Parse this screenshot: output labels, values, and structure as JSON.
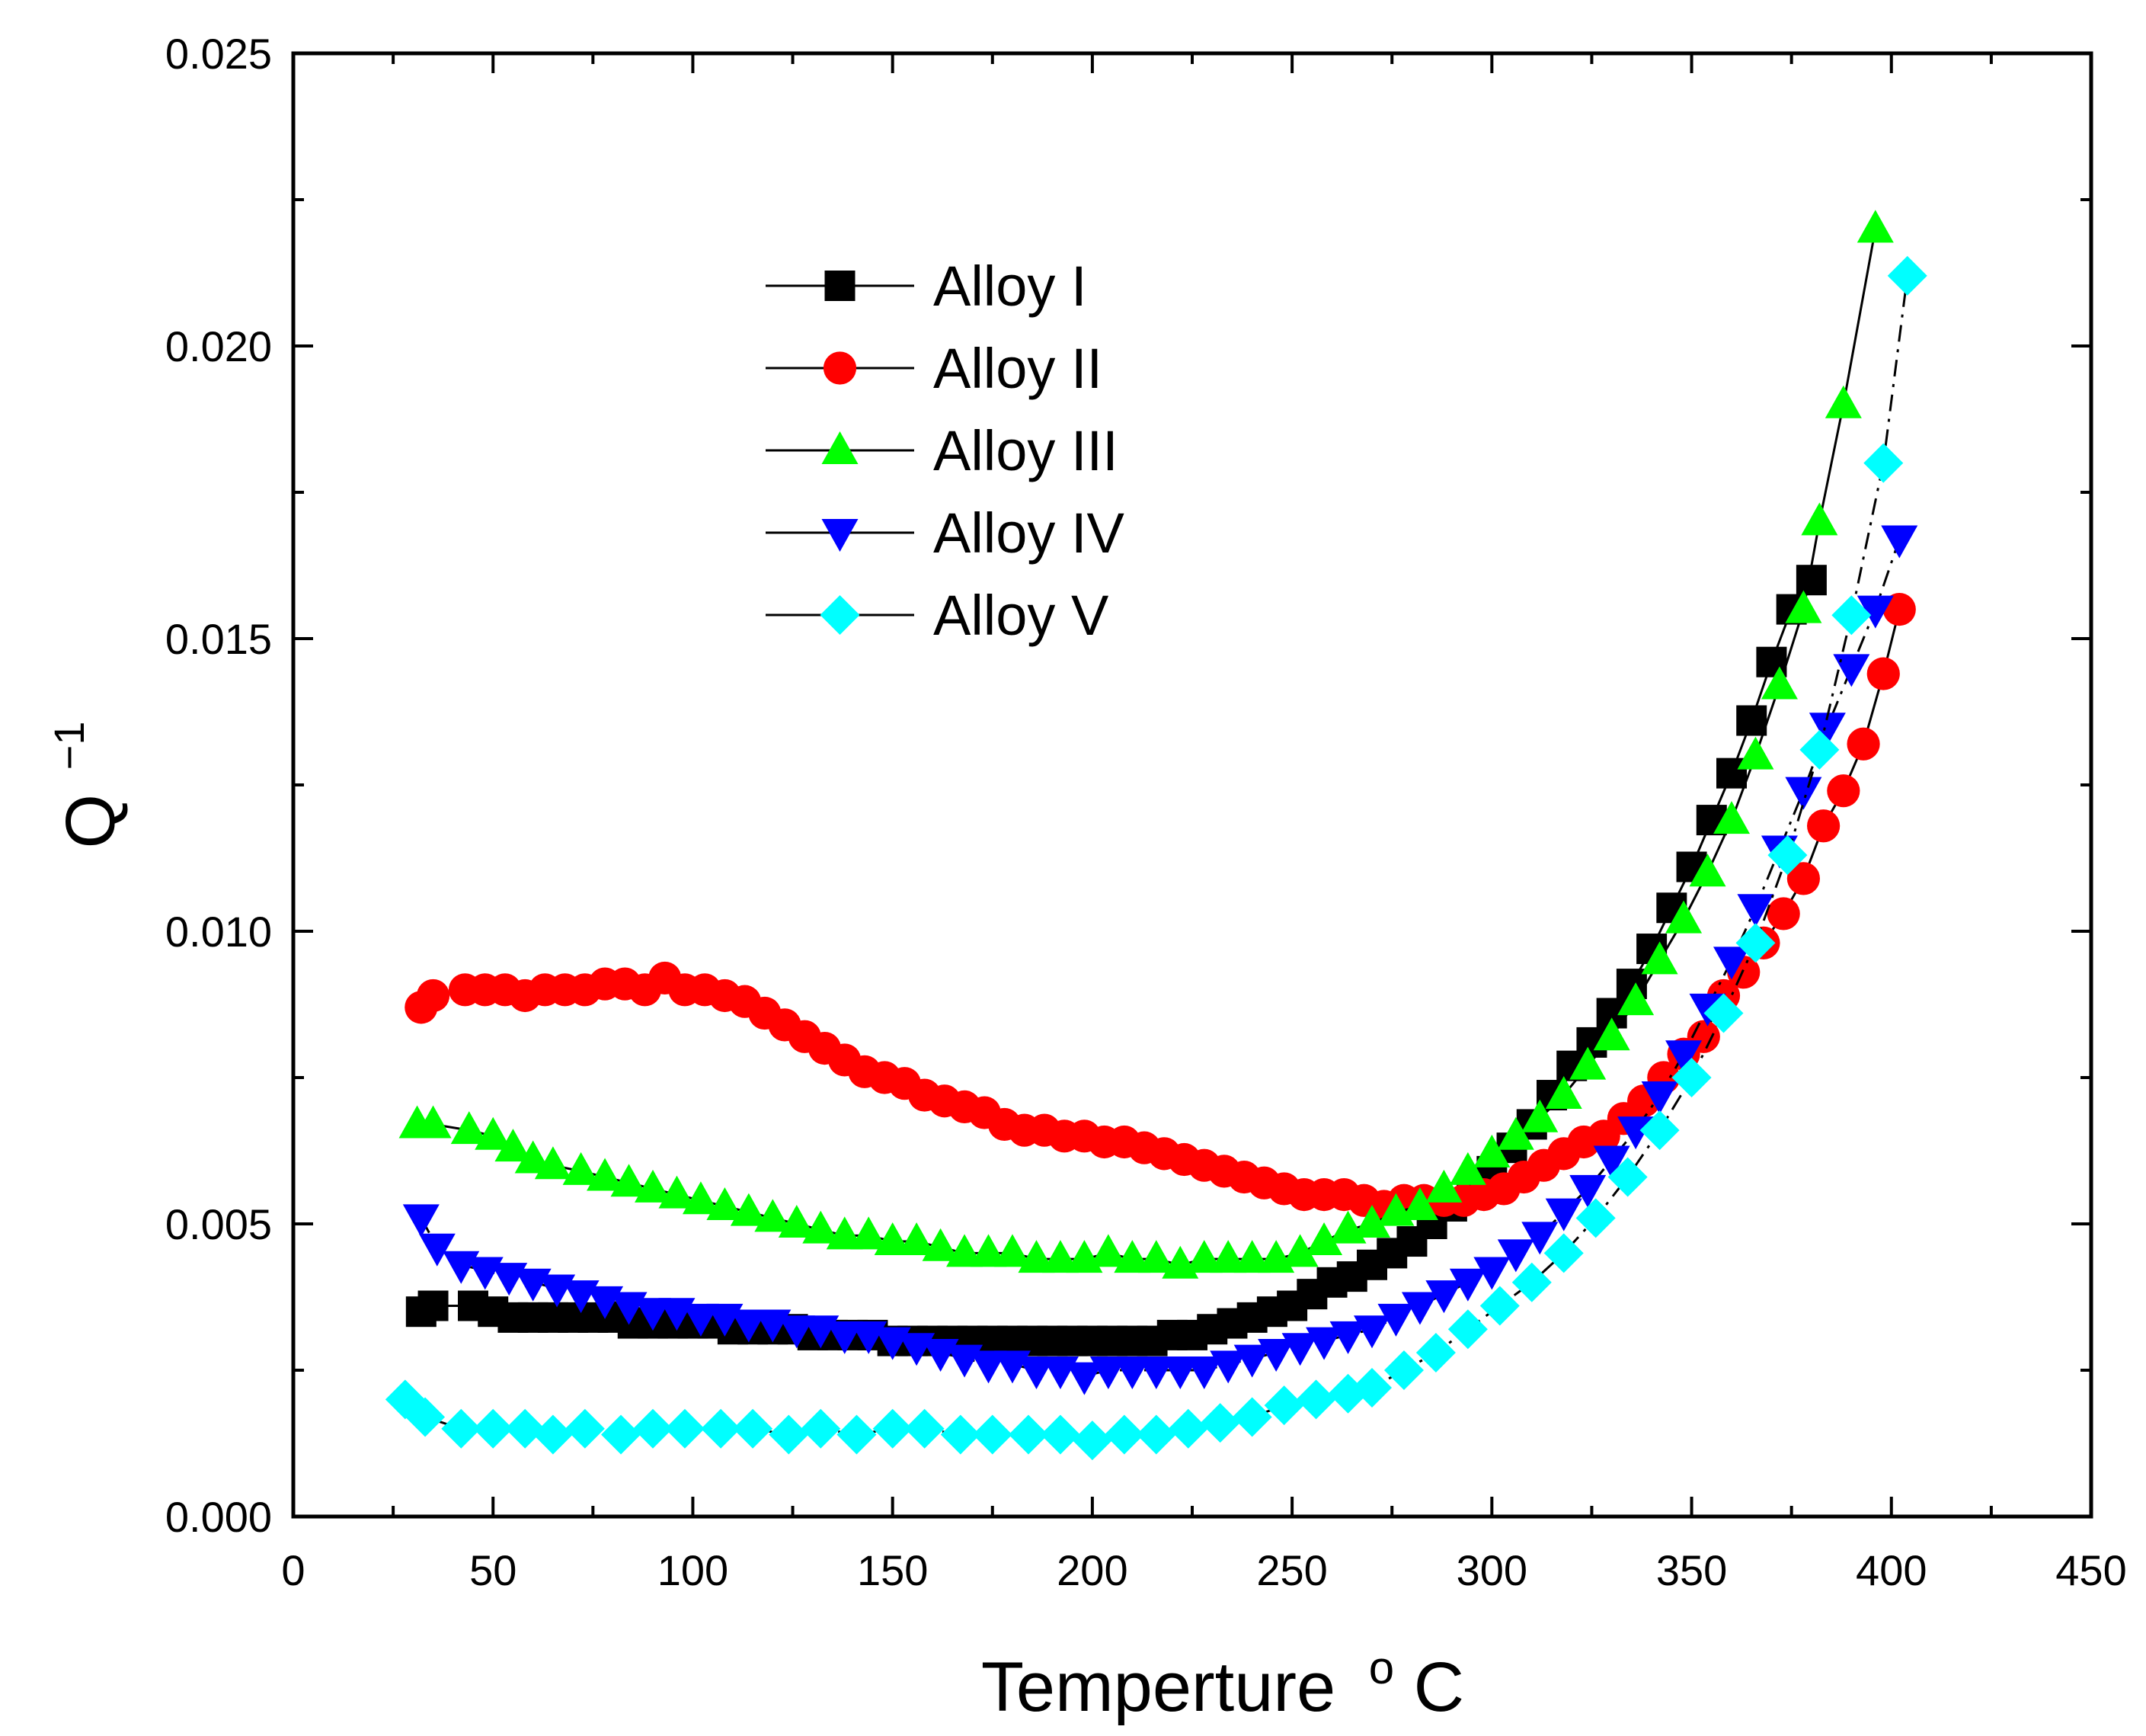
{
  "chart_data": {
    "type": "scatter",
    "title": "",
    "xlabel": "Temperture",
    "xlabel_unit_sup": "o",
    "xlabel_unit": "C",
    "ylabel": "Q",
    "ylabel_sup": "−1",
    "xlim": [
      0,
      450
    ],
    "ylim": [
      0.0,
      0.025
    ],
    "xticks": [
      0,
      50,
      100,
      150,
      200,
      250,
      300,
      350,
      400,
      450
    ],
    "xtick_labels": [
      "0",
      "50",
      "100",
      "150",
      "200",
      "250",
      "300",
      "350",
      "400",
      "450"
    ],
    "yticks": [
      0.0,
      0.005,
      0.01,
      0.015,
      0.02,
      0.025
    ],
    "ytick_labels": [
      "0.000",
      "0.005",
      "0.010",
      "0.015",
      "0.020",
      "0.025"
    ],
    "grid": false,
    "legend_position": "top-center",
    "series": [
      {
        "name": "Alloy I",
        "marker": "square",
        "color": "#000000",
        "line_style": "solid",
        "x": [
          32,
          35,
          45,
          50,
          55,
          60,
          65,
          70,
          75,
          80,
          85,
          90,
          95,
          100,
          105,
          110,
          115,
          120,
          125,
          130,
          135,
          140,
          145,
          150,
          155,
          160,
          165,
          170,
          175,
          180,
          185,
          190,
          195,
          200,
          205,
          210,
          215,
          220,
          225,
          230,
          235,
          240,
          245,
          250,
          255,
          260,
          265,
          270,
          275,
          280,
          285,
          290,
          295,
          300,
          305,
          310,
          315,
          320,
          325,
          330,
          335,
          340,
          345,
          350,
          355,
          360,
          365,
          370,
          375,
          380
        ],
        "y": [
          0.0035,
          0.0036,
          0.0036,
          0.0035,
          0.0034,
          0.0034,
          0.0034,
          0.0034,
          0.0034,
          0.0034,
          0.0033,
          0.0033,
          0.0033,
          0.0033,
          0.0033,
          0.0032,
          0.0032,
          0.0032,
          0.0032,
          0.0031,
          0.0031,
          0.0031,
          0.0031,
          0.003,
          0.003,
          0.003,
          0.003,
          0.003,
          0.003,
          0.003,
          0.003,
          0.003,
          0.003,
          0.003,
          0.003,
          0.003,
          0.003,
          0.0031,
          0.0031,
          0.0032,
          0.0033,
          0.0034,
          0.0035,
          0.0036,
          0.0038,
          0.004,
          0.0041,
          0.0043,
          0.0045,
          0.0047,
          0.005,
          0.0053,
          0.0056,
          0.0059,
          0.0063,
          0.0067,
          0.0072,
          0.0077,
          0.0081,
          0.0086,
          0.0091,
          0.0097,
          0.0104,
          0.0111,
          0.0119,
          0.0127,
          0.0136,
          0.0146,
          0.0155,
          0.016
        ]
      },
      {
        "name": "Alloy II",
        "marker": "circle",
        "color": "#ff0000",
        "line_style": "solid",
        "x": [
          32,
          35,
          43,
          48,
          53,
          58,
          63,
          68,
          73,
          78,
          83,
          88,
          93,
          98,
          103,
          108,
          113,
          118,
          123,
          128,
          133,
          138,
          143,
          148,
          153,
          158,
          163,
          168,
          173,
          178,
          183,
          188,
          193,
          198,
          203,
          208,
          213,
          218,
          223,
          228,
          233,
          238,
          243,
          248,
          253,
          258,
          263,
          268,
          273,
          278,
          283,
          288,
          293,
          298,
          303,
          308,
          313,
          318,
          323,
          328,
          333,
          338,
          343,
          348,
          353,
          358,
          363,
          368,
          373,
          378,
          383,
          388,
          393,
          398,
          402
        ],
        "y": [
          0.0087,
          0.0089,
          0.009,
          0.009,
          0.009,
          0.0089,
          0.009,
          0.009,
          0.009,
          0.0091,
          0.0091,
          0.009,
          0.0092,
          0.009,
          0.009,
          0.0089,
          0.0088,
          0.0086,
          0.0084,
          0.0082,
          0.008,
          0.0078,
          0.0076,
          0.0075,
          0.0074,
          0.0072,
          0.0071,
          0.007,
          0.0069,
          0.0067,
          0.0066,
          0.0066,
          0.0065,
          0.0065,
          0.0064,
          0.0064,
          0.0063,
          0.0062,
          0.0061,
          0.006,
          0.0059,
          0.0058,
          0.0057,
          0.0056,
          0.0055,
          0.0055,
          0.0055,
          0.0054,
          0.0053,
          0.0054,
          0.0054,
          0.0054,
          0.0054,
          0.0055,
          0.0056,
          0.0058,
          0.006,
          0.0062,
          0.0064,
          0.0065,
          0.0068,
          0.0071,
          0.0075,
          0.0079,
          0.0082,
          0.0089,
          0.0093,
          0.0098,
          0.0103,
          0.0109,
          0.0118,
          0.0124,
          0.0132,
          0.0144,
          0.0155
        ]
      },
      {
        "name": "Alloy III",
        "marker": "triangle-up",
        "color": "#00ff00",
        "line_style": "solid",
        "x": [
          31,
          35,
          44,
          50,
          55,
          60,
          65,
          72,
          78,
          84,
          90,
          96,
          102,
          108,
          114,
          120,
          126,
          132,
          138,
          144,
          150,
          156,
          162,
          168,
          174,
          180,
          186,
          192,
          198,
          204,
          210,
          216,
          222,
          228,
          234,
          240,
          246,
          252,
          258,
          264,
          270,
          276,
          282,
          288,
          294,
          300,
          306,
          312,
          318,
          324,
          330,
          336,
          342,
          348,
          354,
          360,
          366,
          372,
          378,
          382,
          388,
          396
        ],
        "y": [
          0.0067,
          0.0067,
          0.0066,
          0.0065,
          0.0063,
          0.0061,
          0.006,
          0.0059,
          0.0058,
          0.0057,
          0.0056,
          0.0055,
          0.0054,
          0.0053,
          0.0052,
          0.0051,
          0.005,
          0.0049,
          0.0048,
          0.0048,
          0.0047,
          0.0047,
          0.0046,
          0.0045,
          0.0045,
          0.0045,
          0.0044,
          0.0044,
          0.0044,
          0.0045,
          0.0044,
          0.0044,
          0.0043,
          0.0044,
          0.0044,
          0.0044,
          0.0044,
          0.0045,
          0.0047,
          0.0049,
          0.005,
          0.0052,
          0.0053,
          0.0056,
          0.0059,
          0.0062,
          0.0065,
          0.0068,
          0.0072,
          0.0077,
          0.0082,
          0.0088,
          0.0095,
          0.0102,
          0.011,
          0.0119,
          0.013,
          0.0142,
          0.0155,
          0.017,
          0.019,
          0.022
        ]
      },
      {
        "name": "Alloy IV",
        "marker": "triangle-down",
        "color": "#0000ff",
        "line_style": "dash-dot",
        "x": [
          32,
          36,
          42,
          48,
          54,
          60,
          66,
          72,
          78,
          84,
          90,
          96,
          102,
          108,
          114,
          120,
          126,
          132,
          138,
          144,
          150,
          156,
          162,
          168,
          174,
          180,
          186,
          192,
          198,
          204,
          210,
          216,
          222,
          228,
          234,
          240,
          246,
          252,
          258,
          264,
          270,
          276,
          282,
          288,
          294,
          300,
          306,
          312,
          318,
          324,
          330,
          336,
          342,
          348,
          354,
          360,
          366,
          372,
          378,
          384,
          390,
          396,
          402
        ],
        "y": [
          0.0051,
          0.0046,
          0.0043,
          0.0042,
          0.0041,
          0.004,
          0.0039,
          0.0038,
          0.0037,
          0.0036,
          0.0035,
          0.0035,
          0.0034,
          0.0034,
          0.0033,
          0.0033,
          0.0032,
          0.0032,
          0.0031,
          0.0031,
          0.003,
          0.0029,
          0.0028,
          0.0027,
          0.0026,
          0.0026,
          0.0025,
          0.0025,
          0.0024,
          0.0025,
          0.0025,
          0.0025,
          0.0025,
          0.0025,
          0.0026,
          0.0027,
          0.0028,
          0.0029,
          0.003,
          0.0031,
          0.0032,
          0.0034,
          0.0036,
          0.0038,
          0.004,
          0.0042,
          0.0045,
          0.0048,
          0.0052,
          0.0056,
          0.0061,
          0.0066,
          0.0072,
          0.0079,
          0.0087,
          0.0095,
          0.0104,
          0.0114,
          0.0124,
          0.0135,
          0.0145,
          0.0155,
          0.0167
        ]
      },
      {
        "name": "Alloy V",
        "marker": "diamond",
        "color": "#00ffff",
        "line_style": "dash-dot",
        "x": [
          28,
          33,
          42,
          50,
          58,
          65,
          73,
          82,
          90,
          98,
          107,
          115,
          124,
          132,
          141,
          150,
          158,
          167,
          175,
          184,
          192,
          200,
          208,
          216,
          224,
          232,
          240,
          248,
          256,
          264,
          270,
          278,
          286,
          294,
          302,
          310,
          318,
          326,
          334,
          342,
          350,
          358,
          366,
          374,
          382,
          390,
          398,
          404
        ],
        "y": [
          0.002,
          0.0017,
          0.0015,
          0.0015,
          0.0015,
          0.0014,
          0.0015,
          0.0014,
          0.0015,
          0.0015,
          0.0015,
          0.0015,
          0.0014,
          0.0015,
          0.0014,
          0.0015,
          0.0015,
          0.0014,
          0.0014,
          0.0014,
          0.0014,
          0.0013,
          0.0014,
          0.0014,
          0.0015,
          0.0016,
          0.0017,
          0.0019,
          0.002,
          0.0021,
          0.0022,
          0.0025,
          0.0028,
          0.0032,
          0.0036,
          0.004,
          0.0045,
          0.0051,
          0.0058,
          0.0066,
          0.0075,
          0.0086,
          0.0098,
          0.0113,
          0.0131,
          0.0154,
          0.018,
          0.0212
        ]
      }
    ]
  }
}
